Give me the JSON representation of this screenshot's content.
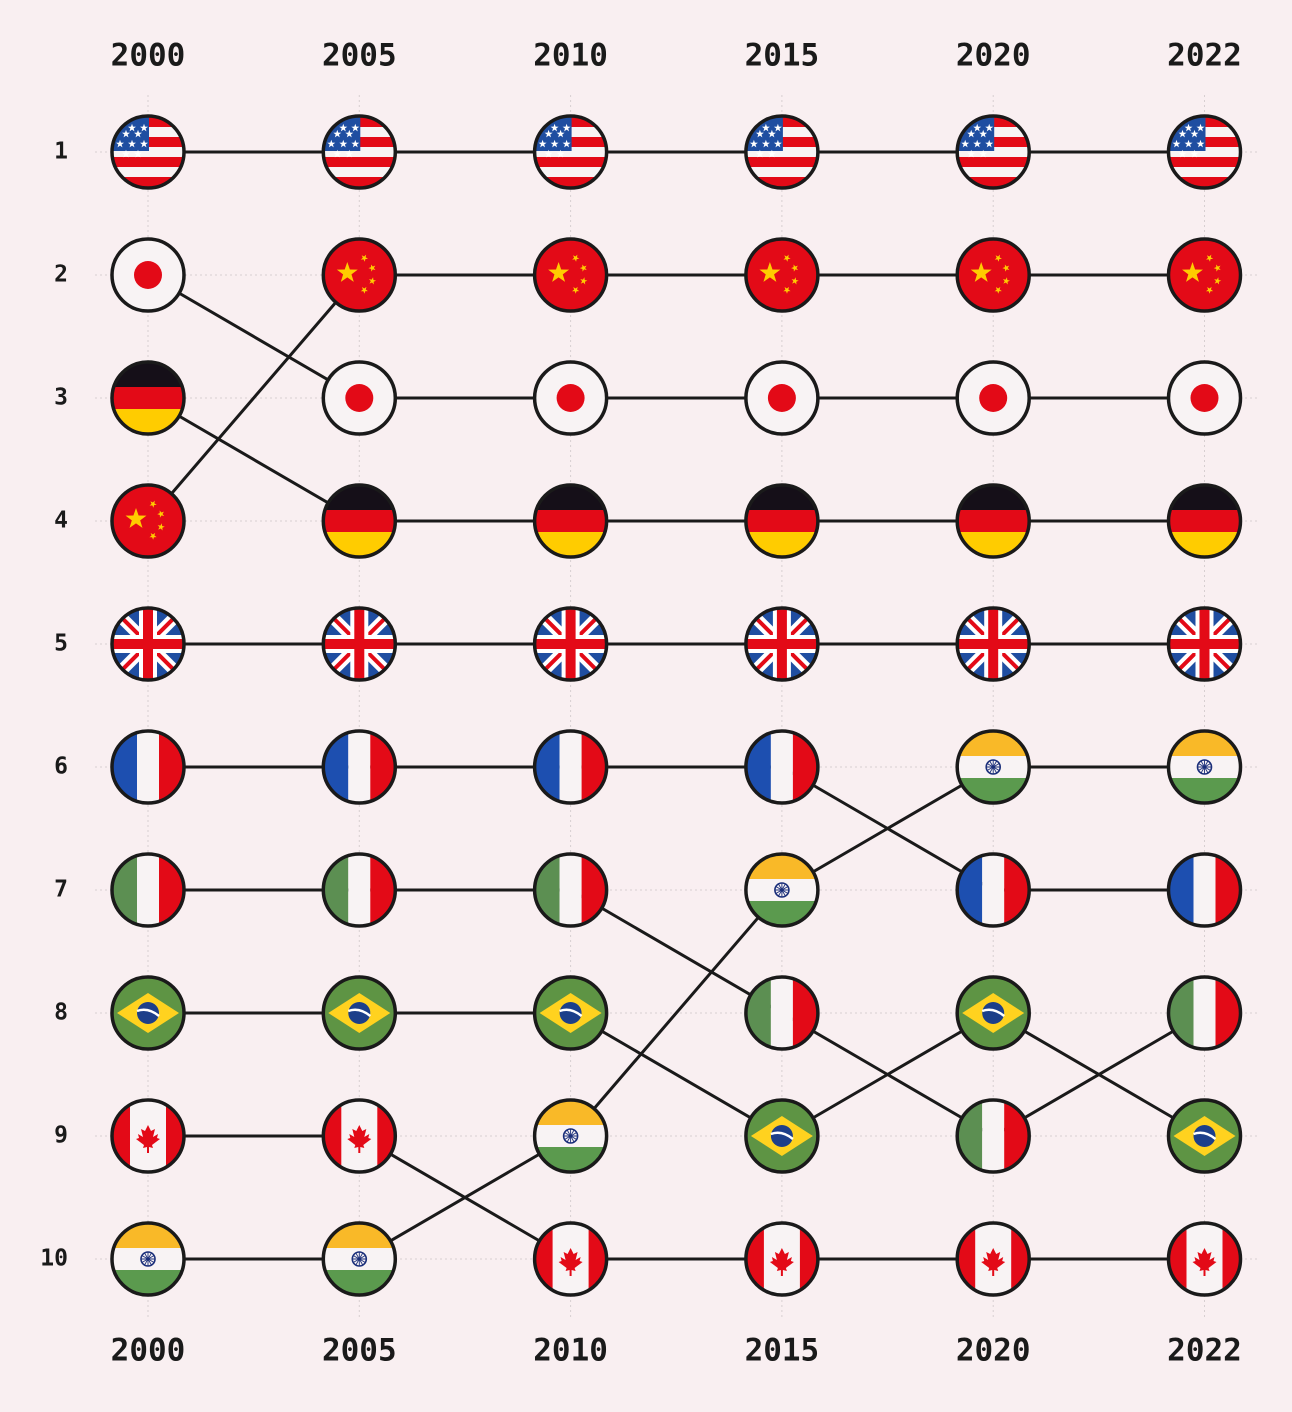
{
  "chart_data": {
    "type": "bump",
    "title": "",
    "x": [
      "2000",
      "2005",
      "2010",
      "2015",
      "2020",
      "2022"
    ],
    "ranks": [
      "1",
      "2",
      "3",
      "4",
      "5",
      "6",
      "7",
      "8",
      "9",
      "10"
    ],
    "y_order": "rank 1 at top",
    "series": [
      {
        "flag": "usa",
        "values": [
          1,
          1,
          1,
          1,
          1,
          1
        ]
      },
      {
        "flag": "china",
        "values": [
          4,
          2,
          2,
          2,
          2,
          2
        ]
      },
      {
        "flag": "japan",
        "values": [
          2,
          3,
          3,
          3,
          3,
          3
        ]
      },
      {
        "flag": "germany",
        "values": [
          3,
          4,
          4,
          4,
          4,
          4
        ]
      },
      {
        "flag": "uk",
        "values": [
          5,
          5,
          5,
          5,
          5,
          5
        ]
      },
      {
        "flag": "india",
        "values": [
          10,
          10,
          9,
          7,
          6,
          6
        ]
      },
      {
        "flag": "france",
        "values": [
          6,
          6,
          6,
          6,
          7,
          7
        ]
      },
      {
        "flag": "italy",
        "values": [
          7,
          7,
          7,
          8,
          9,
          8
        ]
      },
      {
        "flag": "brazil",
        "values": [
          8,
          8,
          8,
          9,
          8,
          9
        ]
      },
      {
        "flag": "canada",
        "values": [
          9,
          9,
          10,
          10,
          10,
          10
        ]
      }
    ],
    "colors": {
      "background": "#f9eff1",
      "line": "#1a1a1a",
      "red": "#e30a17",
      "blue": "#1f4ea1",
      "white": "#f8f3f4",
      "yellow": "#ffcc00",
      "black": "#150f18",
      "green": "#4f8c45",
      "saffron": "#f9b928",
      "flag_green": "#5b9a4e",
      "brazil_green": "#5e9444",
      "brazil_yellow": "#ffd21f",
      "brazil_blue": "#1c3f8a",
      "france_blue": "#1d4fb0",
      "italy_green": "#5c8f52"
    }
  }
}
